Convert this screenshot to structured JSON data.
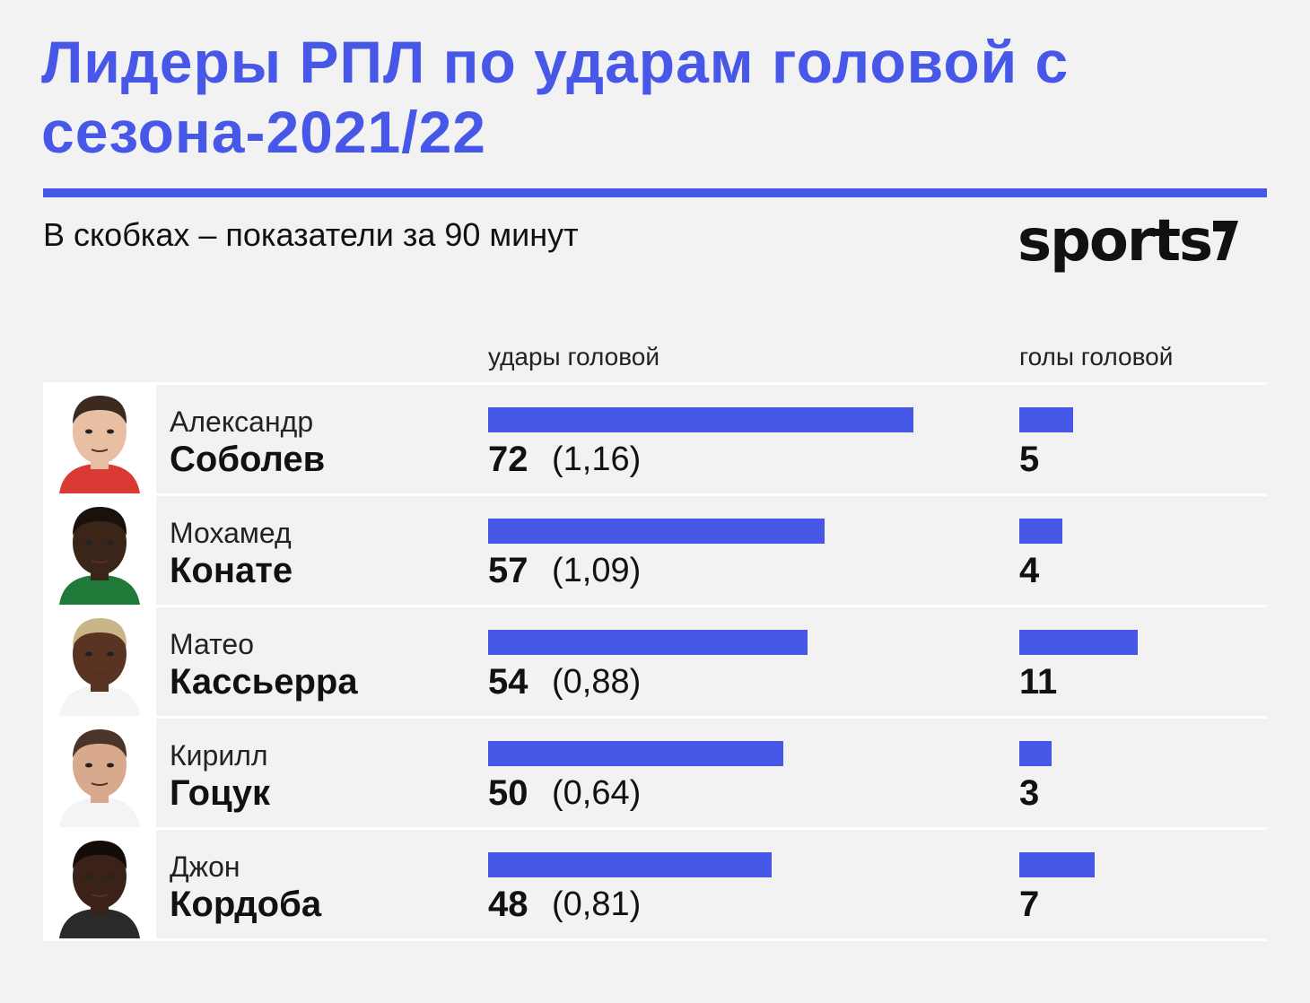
{
  "header": {
    "title": "Лидеры РПЛ по ударам головой с сезона-2021/22",
    "subtitle": "В скобках – показатели за 90 минут",
    "logo_text": "sports",
    "accent_color": "#4757e8"
  },
  "columns": {
    "shots": "удары головой",
    "goals": "голы головой"
  },
  "chart_data": {
    "type": "bar",
    "title": "Лидеры РПЛ по ударам головой с сезона-2021/22",
    "subtitle": "В скобках – показатели за 90 минут",
    "categories": [
      "Александр Соболев",
      "Мохамед Конате",
      "Матео Кассьерра",
      "Кирилл Гоцук",
      "Джон Кордоба"
    ],
    "series": [
      {
        "name": "удары головой",
        "values": [
          72,
          57,
          54,
          50,
          48
        ]
      },
      {
        "name": "голы головой",
        "values": [
          5,
          4,
          11,
          3,
          7
        ]
      }
    ],
    "per90": [
      "(1,16)",
      "(1,09)",
      "(0,88)",
      "(0,64)",
      "(0,81)"
    ],
    "rows": [
      {
        "first": "Александр",
        "last": "Соболев",
        "shots": 72,
        "shots_label": "72",
        "per90": "(1,16)",
        "goals": 5,
        "goals_label": "5",
        "skin": "#e9bfa3",
        "hair": "#3a2a20",
        "shirt": "#d93a34"
      },
      {
        "first": "Мохамед",
        "last": "Конате",
        "shots": 57,
        "shots_label": "57",
        "per90": "(1,09)",
        "goals": 4,
        "goals_label": "4",
        "skin": "#3b2418",
        "hair": "#1a110c",
        "shirt": "#1f7a3a"
      },
      {
        "first": "Матео",
        "last": "Кассьерра",
        "shots": 54,
        "shots_label": "54",
        "per90": "(0,88)",
        "goals": 11,
        "goals_label": "11",
        "skin": "#5a3422",
        "hair": "#c9b58a",
        "shirt": "#f4f4f4"
      },
      {
        "first": "Кирилл",
        "last": "Гоцук",
        "shots": 50,
        "shots_label": "50",
        "per90": "(0,64)",
        "goals": 3,
        "goals_label": "3",
        "skin": "#d8a98c",
        "hair": "#4a3528",
        "shirt": "#f4f4f4"
      },
      {
        "first": "Джон",
        "last": "Кордоба",
        "shots": 48,
        "shots_label": "48",
        "per90": "(0,81)",
        "goals": 7,
        "goals_label": "7",
        "skin": "#3a2218",
        "hair": "#140c08",
        "shirt": "#2a2a2a"
      }
    ]
  }
}
